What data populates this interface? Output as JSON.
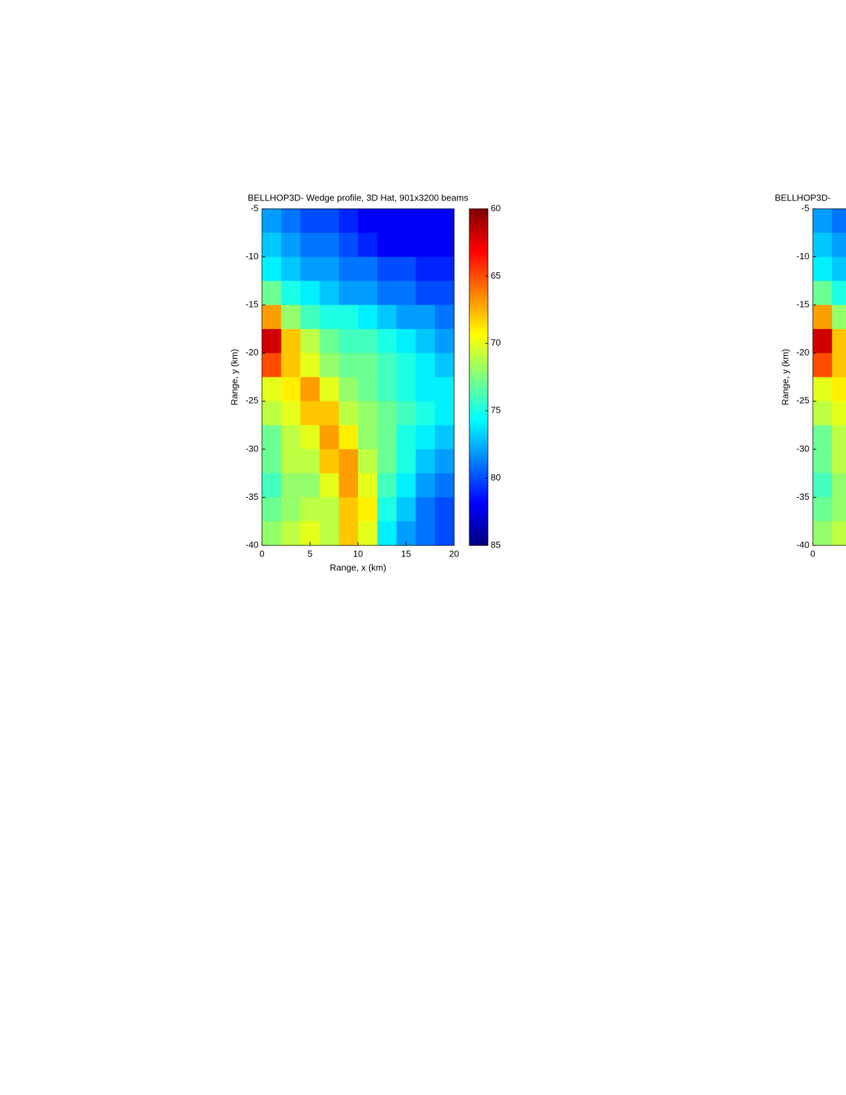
{
  "chart_data": [
    {
      "type": "heatmap",
      "title": "BELLHOP3D- Wedge profile, 3D Hat, 901x3200 beams",
      "xlabel": "Range, x (km)",
      "ylabel": "Range, y (km)",
      "x_edges": [
        0,
        2,
        4,
        6,
        8,
        10,
        12,
        14,
        16,
        18,
        20
      ],
      "y_edges": [
        -5,
        -7.5,
        -10,
        -12.5,
        -15,
        -17.5,
        -20,
        -22.5,
        -25,
        -27.5,
        -30,
        -32.5,
        -35,
        -37.5,
        -40
      ],
      "values": [
        [
          78,
          79,
          80,
          80,
          81,
          82,
          82,
          82,
          82,
          82
        ],
        [
          77,
          78,
          79,
          79,
          80,
          81,
          82,
          82,
          82,
          82
        ],
        [
          76,
          77,
          78,
          78,
          79,
          79,
          80,
          80,
          81,
          81
        ],
        [
          73,
          75,
          76,
          77,
          78,
          78,
          79,
          79,
          80,
          80
        ],
        [
          67,
          72,
          74,
          75,
          75,
          76,
          77,
          78,
          78,
          79
        ],
        [
          62,
          68,
          71,
          73,
          74,
          74,
          75,
          76,
          77,
          78
        ],
        [
          65,
          68,
          70,
          72,
          73,
          73,
          74,
          75,
          76,
          77
        ],
        [
          70,
          69,
          67,
          70,
          72,
          73,
          74,
          75,
          76,
          76
        ],
        [
          71,
          70,
          68,
          68,
          71,
          72,
          73,
          74,
          75,
          76
        ],
        [
          73,
          71,
          70,
          67,
          69,
          72,
          73,
          75,
          76,
          77
        ],
        [
          73,
          71,
          71,
          68,
          67,
          71,
          73,
          75,
          77,
          78
        ],
        [
          74,
          72,
          72,
          70,
          67,
          70,
          74,
          76,
          78,
          79
        ],
        [
          73,
          72,
          71,
          71,
          68,
          69,
          75,
          77,
          79,
          80
        ],
        [
          72,
          71,
          70,
          71,
          68,
          70,
          76,
          78,
          79,
          80
        ]
      ],
      "xlim": [
        0,
        20
      ],
      "ylim": [
        -40,
        -5
      ],
      "xticks": [
        0,
        5,
        10,
        15,
        20
      ],
      "yticks": [
        -40,
        -35,
        -30,
        -25,
        -20,
        -15,
        -10,
        -5
      ],
      "colormap": "jet",
      "colormap_reversed": true,
      "colorbar": {
        "clim": [
          60,
          85
        ],
        "ticks": [
          60,
          65,
          70,
          75,
          80,
          85
        ]
      }
    },
    {
      "type": "heatmap",
      "title": "BELLHOP3D-",
      "ylabel": "Range, y (km)",
      "x_edges": [
        0,
        2,
        4
      ],
      "y_edges": [
        -5,
        -7.5,
        -10,
        -12.5,
        -15,
        -17.5,
        -20,
        -22.5,
        -25,
        -27.5,
        -30,
        -32.5,
        -35,
        -37.5,
        -40
      ],
      "values": [
        [
          78,
          79
        ],
        [
          77,
          78
        ],
        [
          76,
          77
        ],
        [
          73,
          75
        ],
        [
          67,
          72
        ],
        [
          62,
          68
        ],
        [
          65,
          68
        ],
        [
          70,
          69
        ],
        [
          71,
          70
        ],
        [
          73,
          71
        ],
        [
          73,
          71
        ],
        [
          74,
          72
        ],
        [
          73,
          72
        ],
        [
          72,
          71
        ]
      ],
      "xlim": [
        0,
        20
      ],
      "ylim": [
        -40,
        -5
      ],
      "xticks": [
        0
      ],
      "yticks": [
        -40,
        -35,
        -30,
        -25,
        -20,
        -15,
        -10,
        -5
      ],
      "colormap": "jet",
      "colormap_reversed": true,
      "colorbar": {
        "clim": [
          60,
          85
        ]
      }
    }
  ]
}
